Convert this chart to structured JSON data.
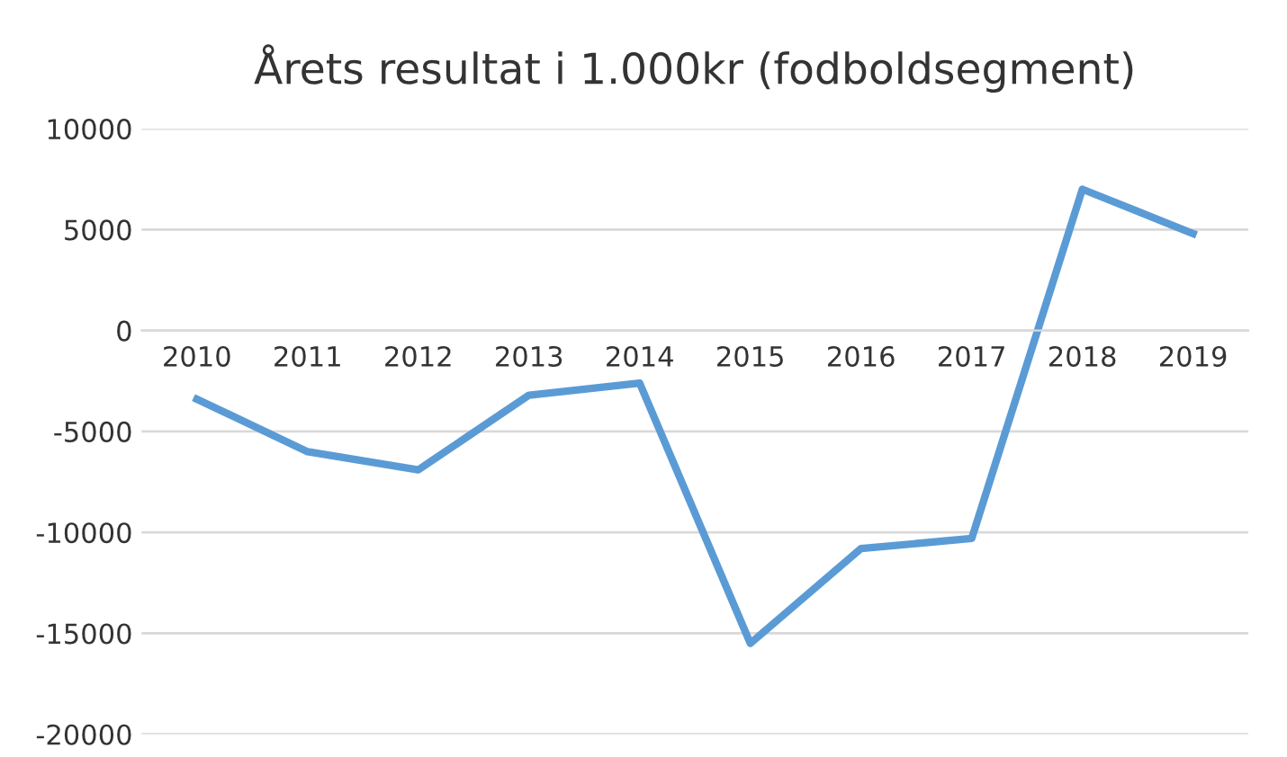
{
  "chart_data": {
    "type": "line",
    "title": "Årets resultat i 1.000kr (fodboldsegment)",
    "categories": [
      "2010",
      "2011",
      "2012",
      "2013",
      "2014",
      "2015",
      "2016",
      "2017",
      "2018",
      "2019"
    ],
    "series": [
      {
        "color": "#5b9bd5",
        "values": [
          -3400,
          -6000,
          -6900,
          -3200,
          -2600,
          -15500,
          -10800,
          -10300,
          7000,
          4800
        ]
      }
    ],
    "ylim": [
      -20000,
      10000
    ],
    "yticks": [
      -20000,
      -15000,
      -10000,
      -5000,
      0,
      5000,
      10000
    ],
    "grid": "y",
    "marker": "none",
    "line_style": "solid"
  }
}
